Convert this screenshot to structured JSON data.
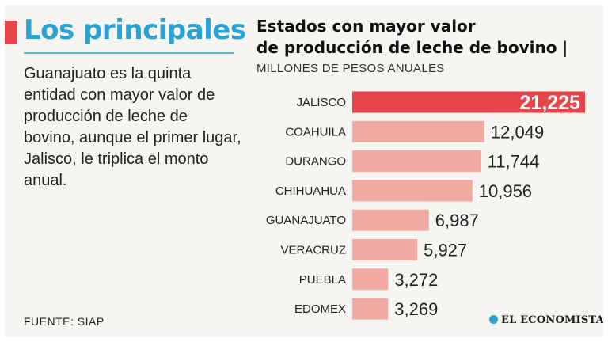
{
  "headline": "Los principales",
  "description": "Guanajuato es la quinta entidad con mayor valor de producción de leche de bovino, aunque el primer lugar, Jalisco, le triplica el monto anual.",
  "source": "FUENTE:  SIAP",
  "logo_text": "EL ECONOMISTA",
  "colors": {
    "accent": "#e8454b",
    "headline": "#2aa3d4",
    "bar": "#f2a9a1",
    "highlight_bar": "#e8454b"
  },
  "chart_data": {
    "type": "bar",
    "orientation": "horizontal",
    "title_line1": "Estados con mayor valor",
    "title_line2": "de producción de leche de bovino",
    "title_separator": "|",
    "subtitle": "MILLONES DE PESOS ANUALES",
    "categories": [
      "JALISCO",
      "COAHUILA",
      "DURANGO",
      "CHIHUAHUA",
      "GUANAJUATO",
      "VERACRUZ",
      "PUEBLA",
      "EDOMEX"
    ],
    "values": [
      21225,
      12049,
      11744,
      10956,
      6987,
      5927,
      3272,
      3269
    ],
    "value_labels": [
      "21,225",
      "12,049",
      "11,744",
      "10,956",
      "6,987",
      "5,927",
      "3,272",
      "3,269"
    ],
    "highlight_index": 0,
    "xlim": [
      0,
      21225
    ],
    "grid": false,
    "legend": "none"
  }
}
